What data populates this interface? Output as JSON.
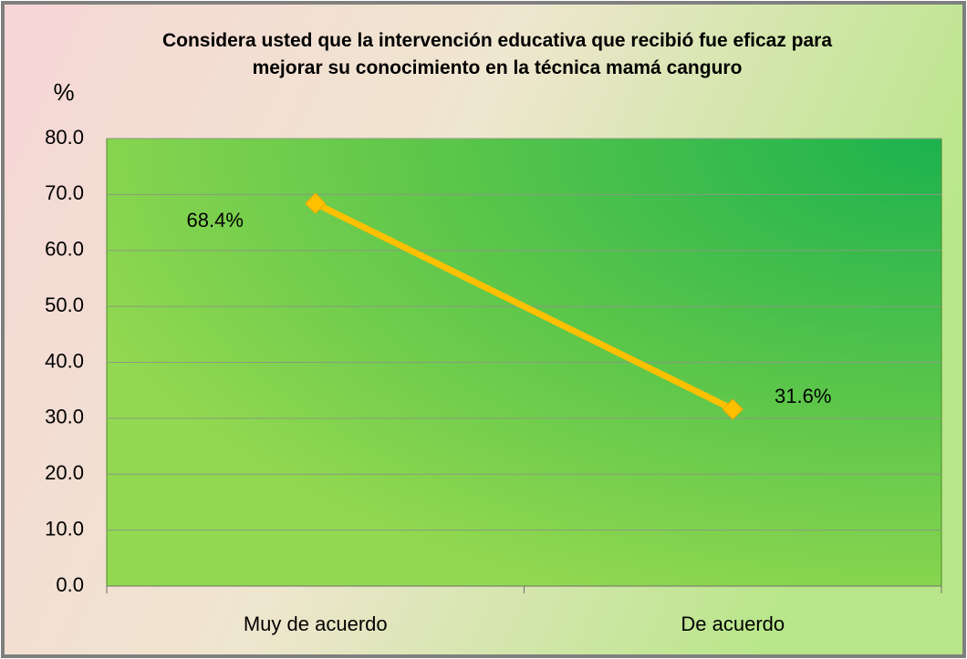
{
  "chart_data": {
    "type": "line",
    "title": "Considera usted que la intervención educativa que recibió fue eficaz para mejorar su conocimiento en la técnica mamá canguro",
    "y_label": "%",
    "categories": [
      "Muy de acuerdo",
      "De acuerdo"
    ],
    "series": [
      {
        "name": null,
        "color": "#ffc000",
        "values": [
          68.4,
          31.6
        ],
        "value_labels": [
          "68.4%",
          "31.6%"
        ]
      }
    ],
    "ylim": [
      0,
      80
    ],
    "yticks": [
      {
        "value": 0,
        "label": "0.0"
      },
      {
        "value": 10,
        "label": "10.0"
      },
      {
        "value": 20,
        "label": "20.0"
      },
      {
        "value": 30,
        "label": "30.0"
      },
      {
        "value": 40,
        "label": "40.0"
      },
      {
        "value": 50,
        "label": "50.0"
      },
      {
        "value": 60,
        "label": "60.0"
      },
      {
        "value": 70,
        "label": "70.0"
      },
      {
        "value": 80,
        "label": "80.0"
      }
    ],
    "grid": true
  }
}
